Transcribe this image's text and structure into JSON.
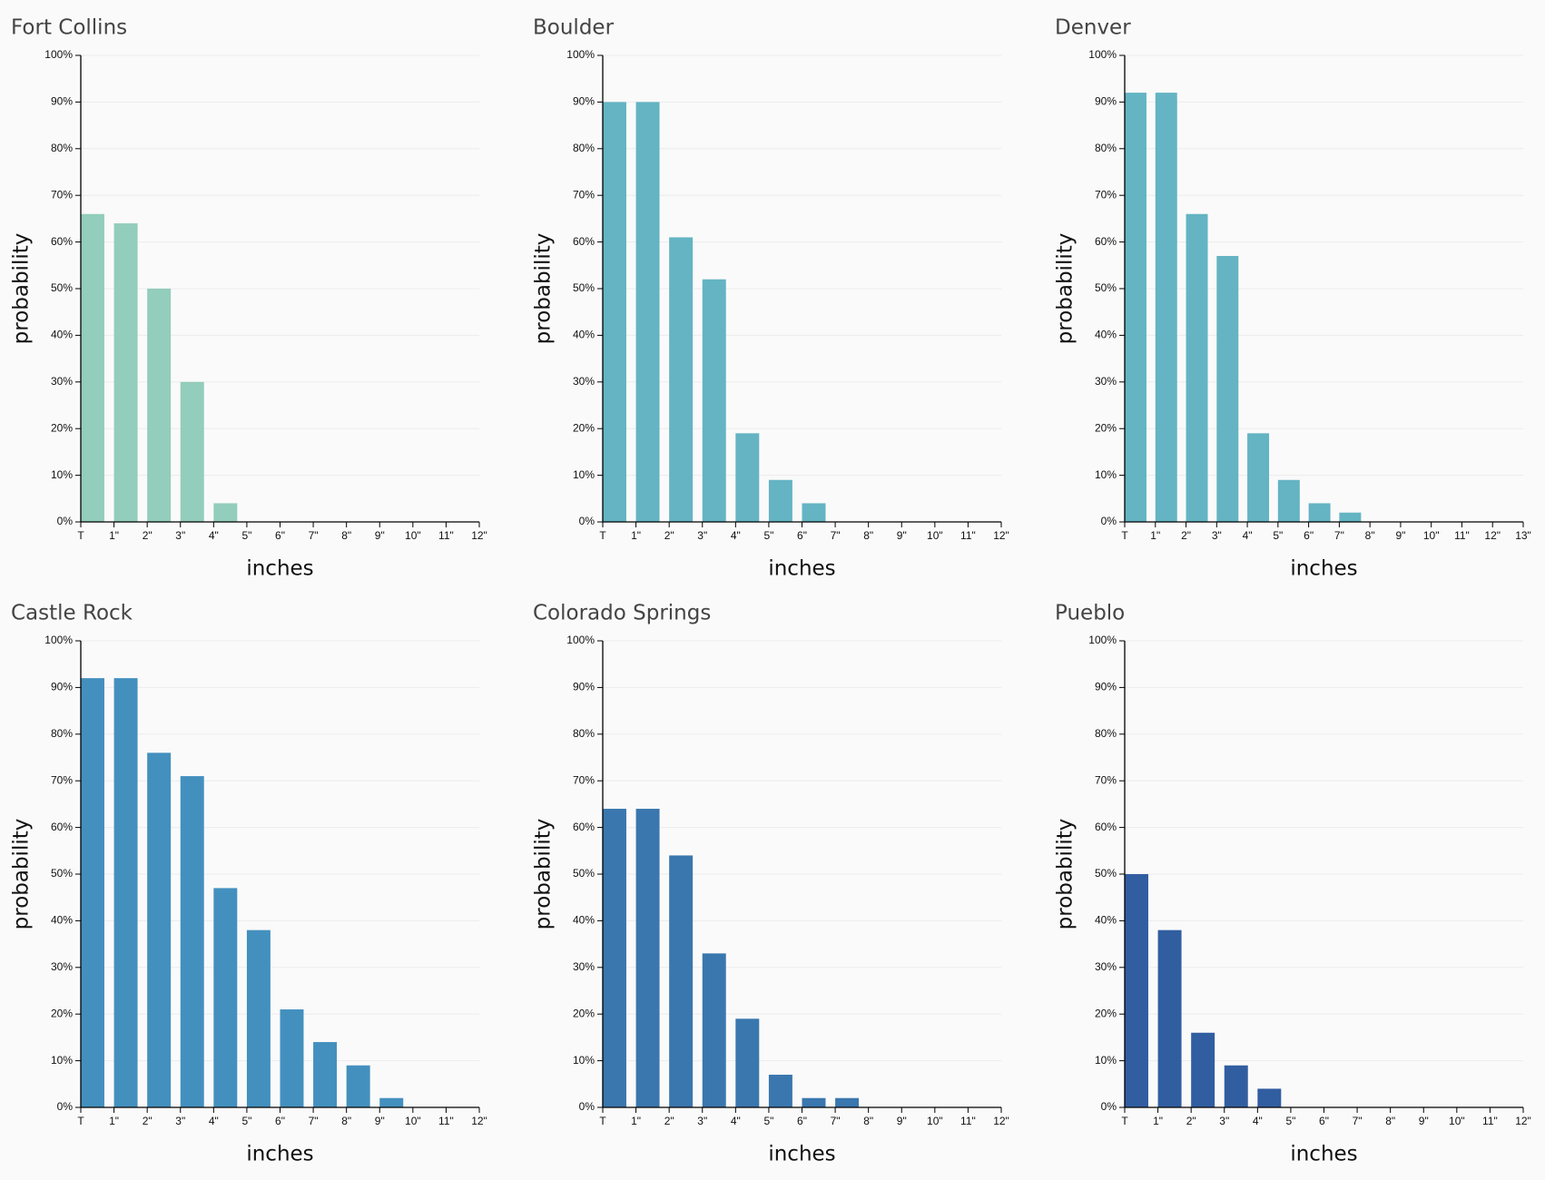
{
  "chart_data": [
    {
      "type": "histogram",
      "title": "Fort Collins",
      "xlabel": "inches",
      "ylabel": "probability",
      "color": "#93cdbb",
      "grid": true,
      "bins": [
        0,
        1,
        2,
        3,
        4,
        5,
        6,
        7,
        8,
        9,
        10,
        11,
        12
      ],
      "values": [
        66,
        64,
        50,
        30,
        4,
        0,
        0,
        0,
        0,
        0,
        0,
        0
      ],
      "xlim": [
        0,
        12
      ],
      "xticks": [
        {
          "value": 0,
          "label": "T"
        },
        {
          "value": 1,
          "label": "1\""
        },
        {
          "value": 2,
          "label": "2\""
        },
        {
          "value": 3,
          "label": "3\""
        },
        {
          "value": 4,
          "label": "4\""
        },
        {
          "value": 5,
          "label": "5\""
        },
        {
          "value": 6,
          "label": "6\""
        },
        {
          "value": 7,
          "label": "7\""
        },
        {
          "value": 8,
          "label": "8\""
        },
        {
          "value": 9,
          "label": "9\""
        },
        {
          "value": 10,
          "label": "10\""
        },
        {
          "value": 11,
          "label": "11\""
        },
        {
          "value": 12,
          "label": "12\""
        }
      ],
      "ylim": [
        0,
        100
      ],
      "yticks": [
        {
          "value": 0,
          "label": "0%"
        },
        {
          "value": 10,
          "label": "10%"
        },
        {
          "value": 20,
          "label": "20%"
        },
        {
          "value": 30,
          "label": "30%"
        },
        {
          "value": 40,
          "label": "40%"
        },
        {
          "value": 50,
          "label": "50%"
        },
        {
          "value": 60,
          "label": "60%"
        },
        {
          "value": 70,
          "label": "70%"
        },
        {
          "value": 80,
          "label": "80%"
        },
        {
          "value": 90,
          "label": "90%"
        },
        {
          "value": 100,
          "label": "100%"
        }
      ]
    },
    {
      "type": "histogram",
      "title": "Boulder",
      "xlabel": "inches",
      "ylabel": "probability",
      "color": "#64b4c3",
      "grid": true,
      "bins": [
        0,
        1,
        2,
        3,
        4,
        5,
        6,
        7,
        8,
        9,
        10,
        11,
        12
      ],
      "values": [
        90,
        90,
        61,
        52,
        19,
        9,
        4,
        0,
        0,
        0,
        0,
        0
      ],
      "xlim": [
        0,
        12
      ],
      "xticks": [
        {
          "value": 0,
          "label": "T"
        },
        {
          "value": 1,
          "label": "1\""
        },
        {
          "value": 2,
          "label": "2\""
        },
        {
          "value": 3,
          "label": "3\""
        },
        {
          "value": 4,
          "label": "4\""
        },
        {
          "value": 5,
          "label": "5\""
        },
        {
          "value": 6,
          "label": "6\""
        },
        {
          "value": 7,
          "label": "7\""
        },
        {
          "value": 8,
          "label": "8\""
        },
        {
          "value": 9,
          "label": "9\""
        },
        {
          "value": 10,
          "label": "10\""
        },
        {
          "value": 11,
          "label": "11\""
        },
        {
          "value": 12,
          "label": "12\""
        }
      ],
      "ylim": [
        0,
        100
      ],
      "yticks": [
        {
          "value": 0,
          "label": "0%"
        },
        {
          "value": 10,
          "label": "10%"
        },
        {
          "value": 20,
          "label": "20%"
        },
        {
          "value": 30,
          "label": "30%"
        },
        {
          "value": 40,
          "label": "40%"
        },
        {
          "value": 50,
          "label": "50%"
        },
        {
          "value": 60,
          "label": "60%"
        },
        {
          "value": 70,
          "label": "70%"
        },
        {
          "value": 80,
          "label": "80%"
        },
        {
          "value": 90,
          "label": "90%"
        },
        {
          "value": 100,
          "label": "100%"
        }
      ]
    },
    {
      "type": "histogram",
      "title": "Denver",
      "xlabel": "inches",
      "ylabel": "probability",
      "color": "#64b4c3",
      "grid": true,
      "bins": [
        0,
        1,
        2,
        3,
        4,
        5,
        6,
        7,
        8,
        9,
        10,
        11,
        12,
        13
      ],
      "values": [
        92,
        92,
        66,
        57,
        19,
        9,
        4,
        2,
        0,
        0,
        0,
        0,
        0
      ],
      "xlim": [
        0,
        13
      ],
      "xticks": [
        {
          "value": 0,
          "label": "T"
        },
        {
          "value": 1,
          "label": "1\""
        },
        {
          "value": 2,
          "label": "2\""
        },
        {
          "value": 3,
          "label": "3\""
        },
        {
          "value": 4,
          "label": "4\""
        },
        {
          "value": 5,
          "label": "5\""
        },
        {
          "value": 6,
          "label": "6\""
        },
        {
          "value": 7,
          "label": "7\""
        },
        {
          "value": 8,
          "label": "8\""
        },
        {
          "value": 9,
          "label": "9\""
        },
        {
          "value": 10,
          "label": "10\""
        },
        {
          "value": 11,
          "label": "11\""
        },
        {
          "value": 12,
          "label": "12\""
        },
        {
          "value": 13,
          "label": "13\""
        }
      ],
      "ylim": [
        0,
        100
      ],
      "yticks": [
        {
          "value": 0,
          "label": "0%"
        },
        {
          "value": 10,
          "label": "10%"
        },
        {
          "value": 20,
          "label": "20%"
        },
        {
          "value": 30,
          "label": "30%"
        },
        {
          "value": 40,
          "label": "40%"
        },
        {
          "value": 50,
          "label": "50%"
        },
        {
          "value": 60,
          "label": "60%"
        },
        {
          "value": 70,
          "label": "70%"
        },
        {
          "value": 80,
          "label": "80%"
        },
        {
          "value": 90,
          "label": "90%"
        },
        {
          "value": 100,
          "label": "100%"
        }
      ]
    },
    {
      "type": "histogram",
      "title": "Castle Rock",
      "xlabel": "inches",
      "ylabel": "probability",
      "color": "#4390be",
      "grid": true,
      "bins": [
        0,
        1,
        2,
        3,
        4,
        5,
        6,
        7,
        8,
        9,
        10,
        11,
        12
      ],
      "values": [
        92,
        92,
        76,
        71,
        47,
        38,
        21,
        14,
        9,
        2,
        0,
        0
      ],
      "xlim": [
        0,
        12
      ],
      "xticks": [
        {
          "value": 0,
          "label": "T"
        },
        {
          "value": 1,
          "label": "1\""
        },
        {
          "value": 2,
          "label": "2\""
        },
        {
          "value": 3,
          "label": "3\""
        },
        {
          "value": 4,
          "label": "4\""
        },
        {
          "value": 5,
          "label": "5\""
        },
        {
          "value": 6,
          "label": "6\""
        },
        {
          "value": 7,
          "label": "7\""
        },
        {
          "value": 8,
          "label": "8\""
        },
        {
          "value": 9,
          "label": "9\""
        },
        {
          "value": 10,
          "label": "10\""
        },
        {
          "value": 11,
          "label": "11\""
        },
        {
          "value": 12,
          "label": "12\""
        }
      ],
      "ylim": [
        0,
        100
      ],
      "yticks": [
        {
          "value": 0,
          "label": "0%"
        },
        {
          "value": 10,
          "label": "10%"
        },
        {
          "value": 20,
          "label": "20%"
        },
        {
          "value": 30,
          "label": "30%"
        },
        {
          "value": 40,
          "label": "40%"
        },
        {
          "value": 50,
          "label": "50%"
        },
        {
          "value": 60,
          "label": "60%"
        },
        {
          "value": 70,
          "label": "70%"
        },
        {
          "value": 80,
          "label": "80%"
        },
        {
          "value": 90,
          "label": "90%"
        },
        {
          "value": 100,
          "label": "100%"
        }
      ]
    },
    {
      "type": "histogram",
      "title": "Colorado Springs",
      "xlabel": "inches",
      "ylabel": "probability",
      "color": "#3a77ae",
      "grid": true,
      "bins": [
        0,
        1,
        2,
        3,
        4,
        5,
        6,
        7,
        8,
        9,
        10,
        11,
        12
      ],
      "values": [
        64,
        64,
        54,
        33,
        19,
        7,
        2,
        2,
        0,
        0,
        0,
        0
      ],
      "xlim": [
        0,
        12
      ],
      "xticks": [
        {
          "value": 0,
          "label": "T"
        },
        {
          "value": 1,
          "label": "1\""
        },
        {
          "value": 2,
          "label": "2\""
        },
        {
          "value": 3,
          "label": "3\""
        },
        {
          "value": 4,
          "label": "4\""
        },
        {
          "value": 5,
          "label": "5\""
        },
        {
          "value": 6,
          "label": "6\""
        },
        {
          "value": 7,
          "label": "7\""
        },
        {
          "value": 8,
          "label": "8\""
        },
        {
          "value": 9,
          "label": "9\""
        },
        {
          "value": 10,
          "label": "10\""
        },
        {
          "value": 11,
          "label": "11\""
        },
        {
          "value": 12,
          "label": "12\""
        }
      ],
      "ylim": [
        0,
        100
      ],
      "yticks": [
        {
          "value": 0,
          "label": "0%"
        },
        {
          "value": 10,
          "label": "10%"
        },
        {
          "value": 20,
          "label": "20%"
        },
        {
          "value": 30,
          "label": "30%"
        },
        {
          "value": 40,
          "label": "40%"
        },
        {
          "value": 50,
          "label": "50%"
        },
        {
          "value": 60,
          "label": "60%"
        },
        {
          "value": 70,
          "label": "70%"
        },
        {
          "value": 80,
          "label": "80%"
        },
        {
          "value": 90,
          "label": "90%"
        },
        {
          "value": 100,
          "label": "100%"
        }
      ]
    },
    {
      "type": "histogram",
      "title": "Pueblo",
      "xlabel": "inches",
      "ylabel": "probability",
      "color": "#315ea0",
      "grid": true,
      "bins": [
        0,
        1,
        2,
        3,
        4,
        5,
        6,
        7,
        8,
        9,
        10,
        11,
        12
      ],
      "values": [
        50,
        38,
        16,
        9,
        4,
        0,
        0,
        0,
        0,
        0,
        0,
        0
      ],
      "xlim": [
        0,
        12
      ],
      "xticks": [
        {
          "value": 0,
          "label": "T"
        },
        {
          "value": 1,
          "label": "1\""
        },
        {
          "value": 2,
          "label": "2\""
        },
        {
          "value": 3,
          "label": "3\""
        },
        {
          "value": 4,
          "label": "4\""
        },
        {
          "value": 5,
          "label": "5\""
        },
        {
          "value": 6,
          "label": "6\""
        },
        {
          "value": 7,
          "label": "7\""
        },
        {
          "value": 8,
          "label": "8\""
        },
        {
          "value": 9,
          "label": "9\""
        },
        {
          "value": 10,
          "label": "10\""
        },
        {
          "value": 11,
          "label": "11\""
        },
        {
          "value": 12,
          "label": "12\""
        }
      ],
      "ylim": [
        0,
        100
      ],
      "yticks": [
        {
          "value": 0,
          "label": "0%"
        },
        {
          "value": 10,
          "label": "10%"
        },
        {
          "value": 20,
          "label": "20%"
        },
        {
          "value": 30,
          "label": "30%"
        },
        {
          "value": 40,
          "label": "40%"
        },
        {
          "value": 50,
          "label": "50%"
        },
        {
          "value": 60,
          "label": "60%"
        },
        {
          "value": 70,
          "label": "70%"
        },
        {
          "value": 80,
          "label": "80%"
        },
        {
          "value": 90,
          "label": "90%"
        },
        {
          "value": 100,
          "label": "100%"
        }
      ]
    }
  ]
}
